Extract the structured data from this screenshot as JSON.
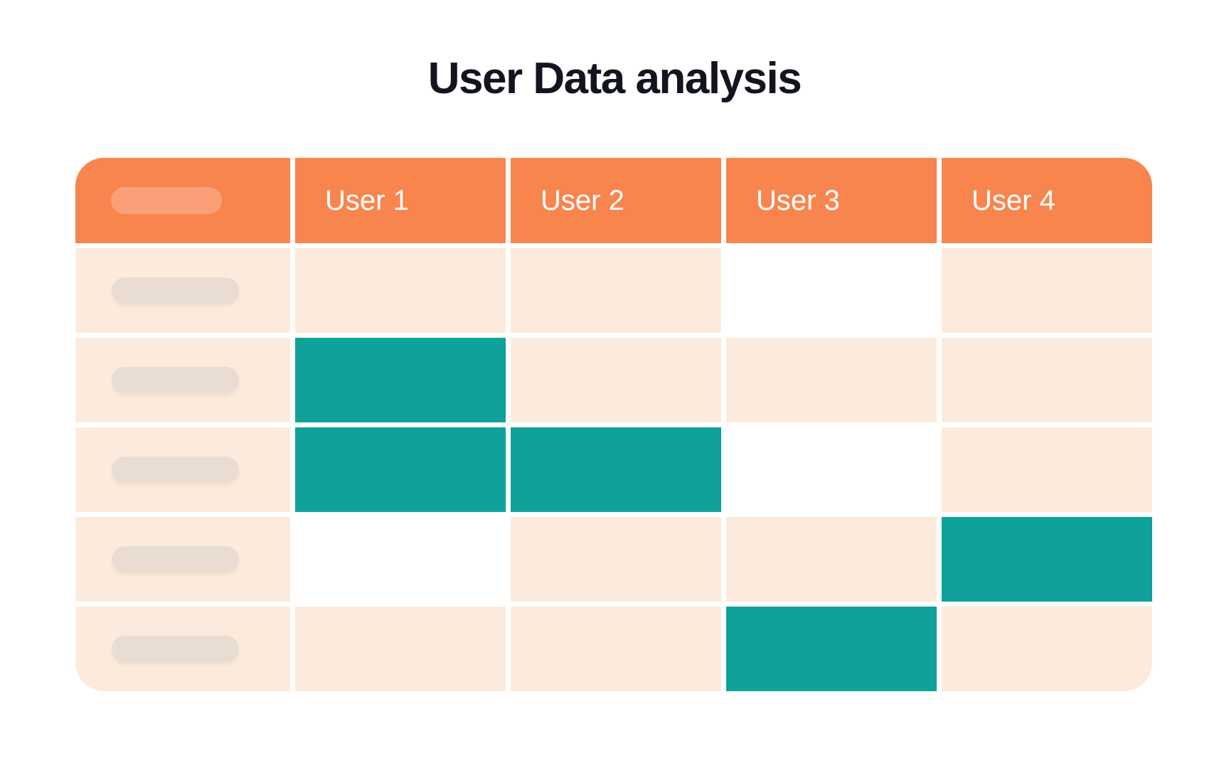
{
  "page": {
    "title": "User Data analysis"
  },
  "chart_data": {
    "type": "table",
    "title": "User Data analysis",
    "columns": [
      "",
      "User 1",
      "User 2",
      "User 3",
      "User 4"
    ],
    "row_labels_are_placeholder_pills": true,
    "rows": [
      {
        "label": "",
        "cells": [
          "filled",
          "filled",
          "empty",
          "filled"
        ]
      },
      {
        "label": "",
        "cells": [
          "highlight",
          "filled",
          "filled",
          "filled"
        ]
      },
      {
        "label": "",
        "cells": [
          "highlight",
          "highlight",
          "empty",
          "filled"
        ]
      },
      {
        "label": "",
        "cells": [
          "empty",
          "filled",
          "filled",
          "highlight"
        ]
      },
      {
        "label": "",
        "cells": [
          "filled",
          "filled",
          "highlight",
          "filled"
        ]
      }
    ],
    "cell_state_meaning": {
      "filled": "default peach cell",
      "empty": "blank white cell",
      "highlight": "teal highlighted cell"
    }
  },
  "colors": {
    "header_orange": "#F8854E",
    "header_pill_orange": "#F9A078",
    "cell_peach": "#FCEBDC",
    "cell_teal": "#0EA29B",
    "cell_empty": "#FFFFFF",
    "row_pill_gray": "#E9DDD3",
    "title_text": "#12141F",
    "header_text": "#FFFFFF"
  }
}
